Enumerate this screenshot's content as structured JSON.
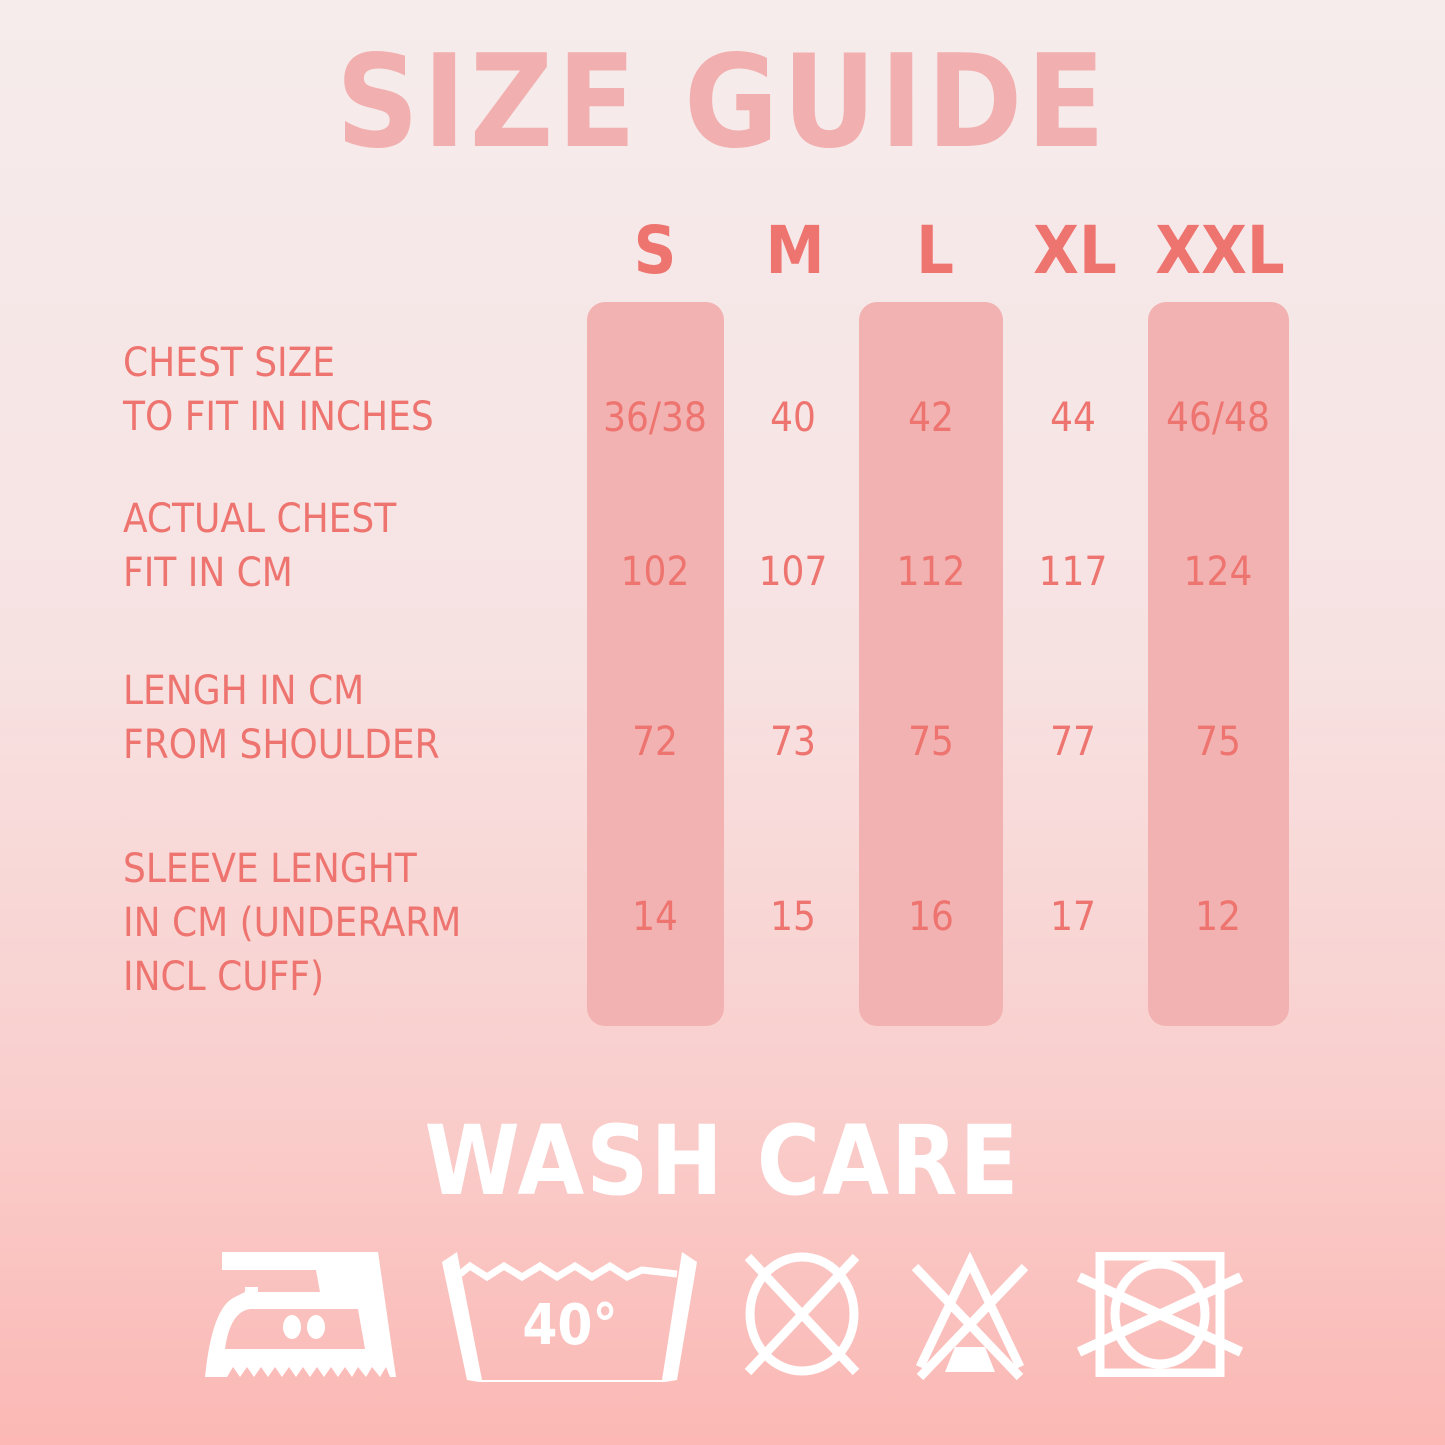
{
  "title": "SIZE GUIDE",
  "sizes": [
    "S",
    "M",
    "L",
    "XL",
    "XXL"
  ],
  "rows": [
    {
      "label": "CHEST SIZE\nTO FIT IN INCHES",
      "values": [
        "36/38",
        "40",
        "42",
        "44",
        "46/48"
      ]
    },
    {
      "label": "ACTUAL CHEST\nFIT IN CM",
      "values": [
        "102",
        "107",
        "112",
        "117",
        "124"
      ]
    },
    {
      "label": "LENGH IN CM\nFROM SHOULDER",
      "values": [
        "72",
        "73",
        "75",
        "77",
        "75"
      ]
    },
    {
      "label": "SLEEVE LENGHT\nIN CM (UNDERARM\nINCL CUFF)",
      "values": [
        "14",
        "15",
        "16",
        "17",
        "12"
      ]
    }
  ],
  "wash_care": {
    "title": "WASH CARE",
    "icons": [
      "iron-icon",
      "wash-40-icon",
      "do-not-dry-clean-icon",
      "do-not-bleach-icon",
      "do-not-tumble-dry-icon"
    ],
    "wash_temp": "40°"
  },
  "colors": {
    "text": "#ee7470",
    "highlight": "#f2b2b2",
    "title": "#f2afaf",
    "icons": "#ffffff"
  }
}
